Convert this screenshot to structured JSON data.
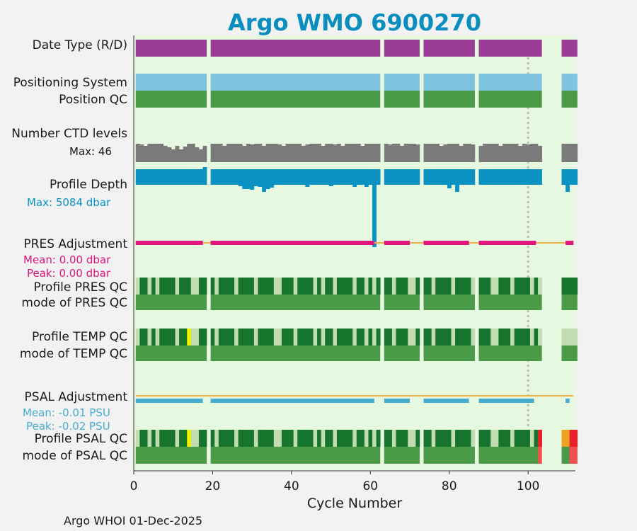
{
  "chart_data": {
    "type": "timeline",
    "title": "Argo WMO 6900270",
    "xlabel": "Cycle Number",
    "xlim": [
      0,
      112
    ],
    "xticks": [
      "0",
      "20",
      "40",
      "60",
      "80",
      "100"
    ],
    "reference_cycle": 100,
    "footer": "Argo WHOI 01-Dec-2025",
    "row_labels": {
      "date_type": "Date Type (R/D)",
      "positioning": "Positioning System",
      "position_qc": "Position QC",
      "ctd_levels": "Number CTD levels",
      "profile_depth": "Profile Depth",
      "pres_adjustment": "PRES Adjustment",
      "profile_pres_qc": "Profile PRES QC",
      "mode_pres_qc": "mode of PRES QC",
      "profile_temp_qc": "Profile TEMP QC",
      "mode_temp_qc": "mode of TEMP QC",
      "psal_adjustment": "PSAL Adjustment",
      "profile_psal_qc": "Profile PSAL QC",
      "mode_psal_qc": "mode of PSAL QC"
    },
    "annotations": {
      "ctd_max": "Max: 46",
      "depth_max": "Max: 5084 dbar",
      "pres_mean": "Mean: 0.00 dbar",
      "pres_peak": "Peak: 0.00 dbar",
      "psal_mean": "Mean: -0.01 PSU",
      "psal_peak": "Peak: -0.02 PSU"
    },
    "cycle_segments": [
      [
        1,
        18
      ],
      [
        20,
        62
      ],
      [
        64,
        72
      ],
      [
        74,
        86
      ],
      [
        88,
        103
      ],
      [
        109,
        112
      ]
    ],
    "depth_outlier_cycle": 61,
    "colors": {
      "title": "#0a8ec0",
      "background": "#e6f8e0",
      "date_type": "#9b3c96",
      "positioning": "#7ec4e0",
      "qc_good": "#4a9a47",
      "qc_dark": "#17742c",
      "qc_light": "#c0dcb0",
      "qc_yellow": "#f0f000",
      "qc_orange": "#f0a020",
      "qc_red": "#e8202a",
      "qc_red_light": "#f05050",
      "ctd": "#7a7a7a",
      "depth": "#0a92c4",
      "pres_adj": "#e0157d",
      "psal_adj": "#48abd0",
      "zero_line": "#f0b040",
      "ref_line": "#bbbbbb",
      "text": "#1a1a1a"
    }
  }
}
